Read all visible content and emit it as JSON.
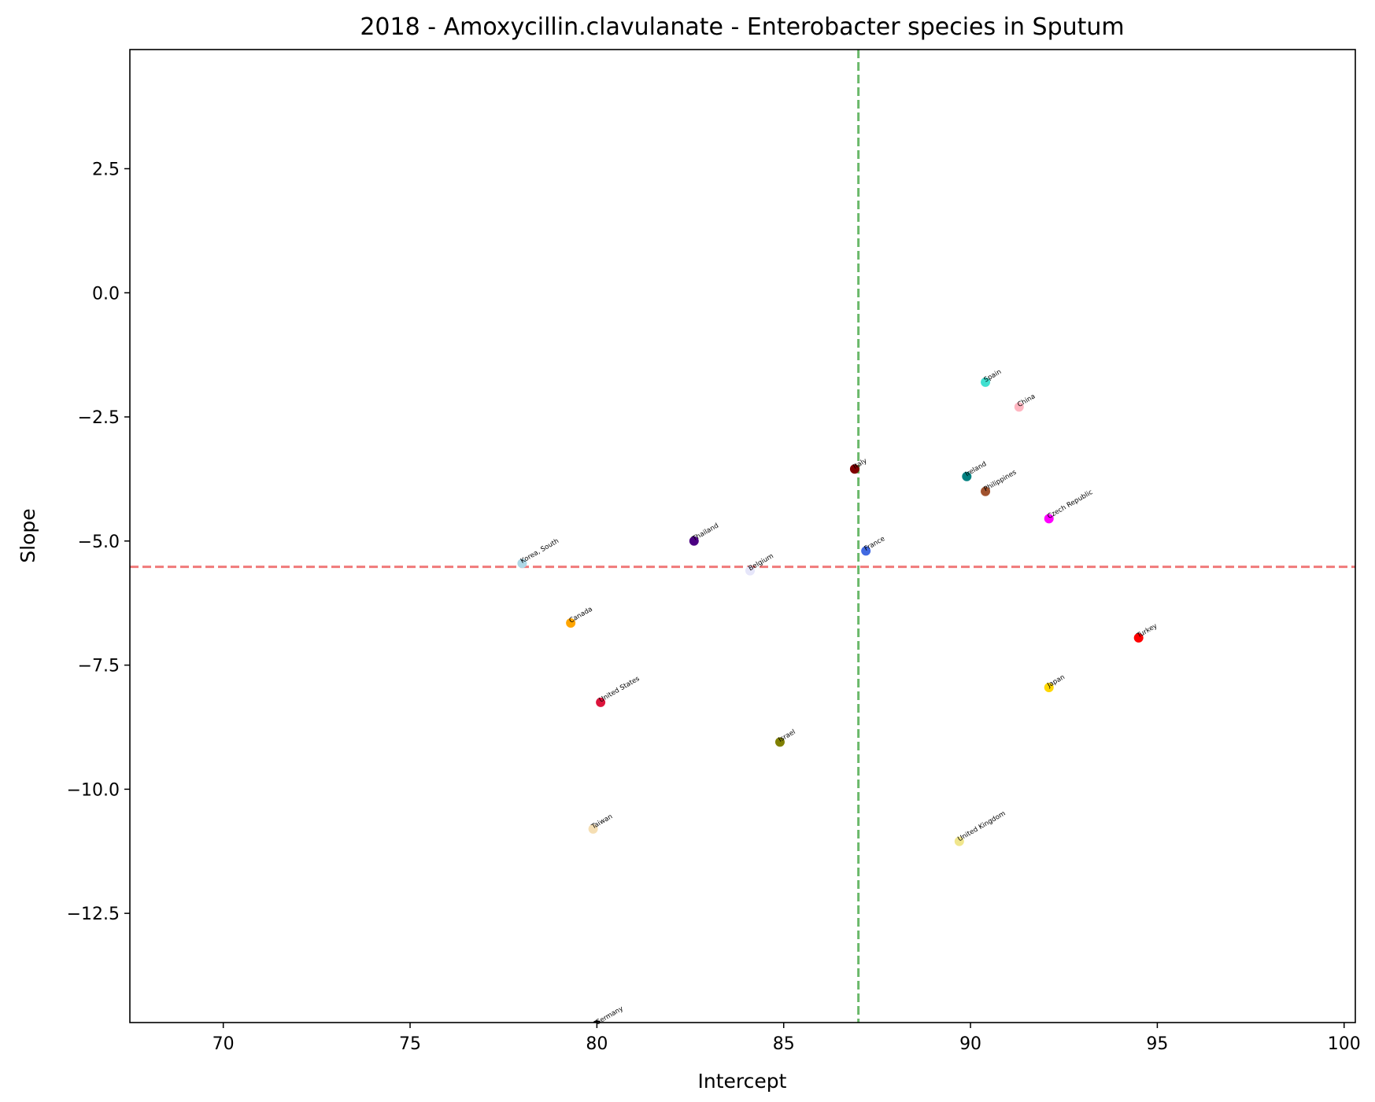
{
  "chart_data": {
    "type": "scatter",
    "title": "2018 - Amoxycillin.clavulanate - Enterobacter species in Sputum",
    "xlabel": "Intercept",
    "ylabel": "Slope",
    "xlim": [
      67.5,
      100.3
    ],
    "ylim": [
      -14.7,
      4.9
    ],
    "xticks": [
      70,
      75,
      80,
      85,
      90,
      95,
      100
    ],
    "xtick_labels": [
      "70",
      "75",
      "80",
      "85",
      "90",
      "95",
      "100"
    ],
    "yticks": [
      2.5,
      0.0,
      -2.5,
      -5.0,
      -7.5,
      -10.0,
      -12.5
    ],
    "ytick_labels": [
      "2.5",
      "0.0",
      "−2.5",
      "−5.0",
      "−7.5",
      "−10.0",
      "−12.5"
    ],
    "reference_lines": {
      "vertical": {
        "x": 87.0,
        "color": "#6ab86a",
        "style": "dashed"
      },
      "horizontal": {
        "y": -5.52,
        "color": "#f07a7a",
        "style": "dashed"
      }
    },
    "points": [
      {
        "label": "Spain",
        "x": 90.4,
        "y": -1.8,
        "color": "#40e0d0"
      },
      {
        "label": "China",
        "x": 91.3,
        "y": -2.3,
        "color": "#ffb6c1"
      },
      {
        "label": "Italy",
        "x": 86.9,
        "y": -3.55,
        "color": "#800000"
      },
      {
        "label": "Ireland",
        "x": 89.9,
        "y": -3.7,
        "color": "#008080"
      },
      {
        "label": "Philippines",
        "x": 90.4,
        "y": -4.0,
        "color": "#a0522d"
      },
      {
        "label": "Czech Republic",
        "x": 92.1,
        "y": -4.55,
        "color": "#ff00ff"
      },
      {
        "label": "Thailand",
        "x": 82.6,
        "y": -5.0,
        "color": "#4b0082"
      },
      {
        "label": "France",
        "x": 87.2,
        "y": -5.2,
        "color": "#4169e1"
      },
      {
        "label": "Korea, South",
        "x": 78.0,
        "y": -5.45,
        "color": "#add8e6"
      },
      {
        "label": "Belgium",
        "x": 84.1,
        "y": -5.6,
        "color": "#e6e6fa"
      },
      {
        "label": "Canada",
        "x": 79.3,
        "y": -6.65,
        "color": "#ffa500"
      },
      {
        "label": "Turkey",
        "x": 94.5,
        "y": -6.95,
        "color": "#ff0000"
      },
      {
        "label": "Japan",
        "x": 92.1,
        "y": -7.95,
        "color": "#ffd700"
      },
      {
        "label": "United States",
        "x": 80.1,
        "y": -8.25,
        "color": "#dc143c"
      },
      {
        "label": "Israel",
        "x": 84.9,
        "y": -9.05,
        "color": "#808000"
      },
      {
        "label": "Taiwan",
        "x": 79.9,
        "y": -10.8,
        "color": "#f5deb3"
      },
      {
        "label": "United Kingdom",
        "x": 89.7,
        "y": -11.05,
        "color": "#f0e68c"
      },
      {
        "label": "Germany",
        "x": 80.0,
        "y": -14.75,
        "color": "#000000"
      }
    ]
  }
}
